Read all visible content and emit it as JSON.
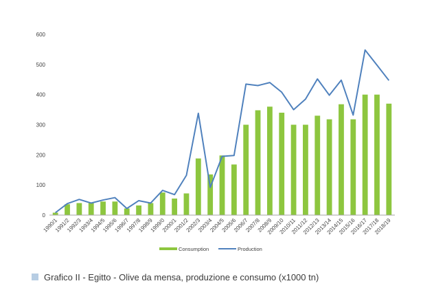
{
  "chart_data": {
    "type": "bar",
    "categories": [
      "1990/1",
      "1991/2",
      "1992/3",
      "1993/4",
      "1994/5",
      "1995/6",
      "1996/7",
      "1997/8",
      "1998/9",
      "1999/0",
      "2000/1",
      "2001/2",
      "2002/3",
      "2003/4",
      "2004/5",
      "2005/6",
      "2006/7",
      "2007/8",
      "2008/9",
      "2009/10",
      "2010/11",
      "2011/12",
      "2012/13",
      "2013/14",
      "2014/15",
      "2015/16",
      "2016/17",
      "2017/18",
      "2018/19"
    ],
    "series": [
      {
        "name": "Consumption",
        "type": "bar",
        "color": "#8dc63f",
        "values": [
          8,
          36,
          40,
          40,
          45,
          45,
          22,
          32,
          40,
          75,
          55,
          72,
          188,
          135,
          198,
          168,
          300,
          348,
          360,
          340,
          300,
          300,
          330,
          318,
          368,
          318,
          400,
          400,
          370
        ]
      },
      {
        "name": "Production",
        "type": "line",
        "color": "#4f81bd",
        "values": [
          8,
          38,
          52,
          40,
          50,
          58,
          22,
          48,
          40,
          82,
          68,
          132,
          338,
          92,
          195,
          198,
          435,
          430,
          440,
          408,
          350,
          385,
          452,
          398,
          448,
          332,
          548,
          498,
          447
        ]
      }
    ],
    "ylim": [
      0,
      600
    ],
    "yticks": [
      0,
      100,
      200,
      300,
      400,
      500,
      600
    ],
    "grid": false,
    "legend": "bottom"
  },
  "caption": "Grafico II -  Egitto  - Olive da mensa, produzione e consumo (x1000 tn)"
}
